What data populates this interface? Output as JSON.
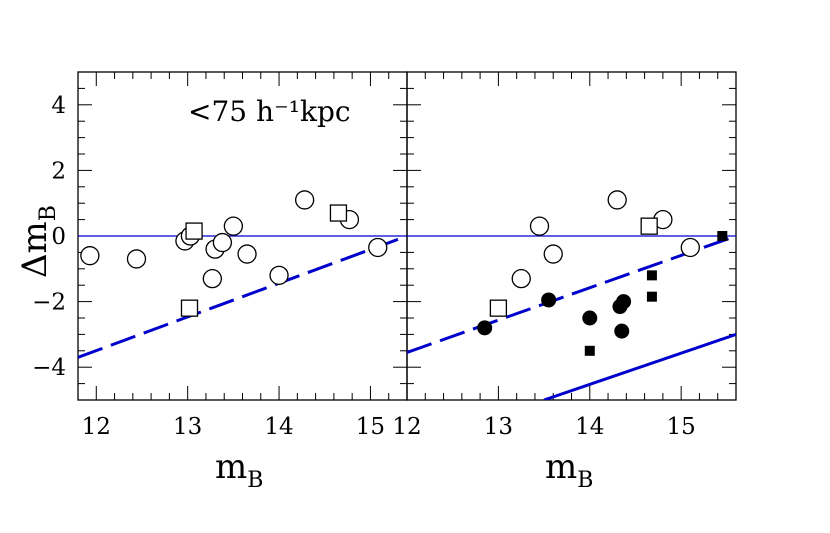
{
  "colors": {
    "blue": "#0000cc",
    "black": "#000000"
  },
  "chart_data": [
    {
      "type": "scatter",
      "panel": "left",
      "xlabel": "m",
      "xlabel_sub": "B",
      "ylabel": "Δm",
      "ylabel_sub": "B",
      "xlim": [
        11.8,
        15.4
      ],
      "ylim": [
        -5,
        5
      ],
      "xticks": [
        12,
        13,
        14,
        15
      ],
      "yticks": [
        4,
        2,
        0,
        -2,
        -4
      ],
      "annotation": "<75 h⁻¹kpc",
      "reference_lines": [
        {
          "style": "solid",
          "color": "#0000cc",
          "points": [
            [
              11.8,
              0
            ],
            [
              15.4,
              0
            ]
          ]
        },
        {
          "style": "dashed",
          "color": "#0000cc",
          "points": [
            [
              11.8,
              -3.7
            ],
            [
              15.4,
              0
            ]
          ]
        }
      ],
      "series": [
        {
          "marker": "open-circle",
          "points": [
            [
              11.93,
              -0.6
            ],
            [
              12.44,
              -0.7
            ],
            [
              12.97,
              -0.15
            ],
            [
              13.03,
              0.0
            ],
            [
              13.27,
              -1.3
            ],
            [
              13.3,
              -0.4
            ],
            [
              13.38,
              -0.2
            ],
            [
              13.5,
              0.3
            ],
            [
              13.65,
              -0.55
            ],
            [
              14.0,
              -1.2
            ],
            [
              14.28,
              1.1
            ],
            [
              14.77,
              0.5
            ],
            [
              15.08,
              -0.35
            ]
          ]
        },
        {
          "marker": "open-square",
          "points": [
            [
              13.07,
              0.15
            ],
            [
              13.02,
              -2.2
            ],
            [
              14.65,
              0.7
            ]
          ]
        }
      ]
    },
    {
      "type": "scatter",
      "panel": "right",
      "xlabel": "m",
      "xlabel_sub": "B",
      "xlim": [
        12.0,
        15.6
      ],
      "ylim": [
        -5,
        5
      ],
      "xticks": [
        12,
        13,
        14,
        15
      ],
      "reference_lines": [
        {
          "style": "solid",
          "color": "#0000cc",
          "points": [
            [
              12.0,
              0
            ],
            [
              15.6,
              0
            ]
          ]
        },
        {
          "style": "dashed",
          "color": "#0000cc",
          "points": [
            [
              12.0,
              -3.55
            ],
            [
              15.6,
              0
            ]
          ]
        },
        {
          "style": "solid",
          "color": "#0000cc",
          "points": [
            [
              13.5,
              -5.0
            ],
            [
              15.6,
              -3.0
            ]
          ]
        }
      ],
      "series": [
        {
          "marker": "open-circle",
          "points": [
            [
              13.25,
              -1.3
            ],
            [
              13.45,
              0.3
            ],
            [
              13.6,
              -0.55
            ],
            [
              14.3,
              1.1
            ],
            [
              14.8,
              0.5
            ],
            [
              15.1,
              -0.35
            ]
          ]
        },
        {
          "marker": "open-square",
          "points": [
            [
              13.0,
              -2.2
            ],
            [
              14.65,
              0.3
            ]
          ]
        },
        {
          "marker": "filled-circle",
          "points": [
            [
              12.85,
              -2.8
            ],
            [
              13.55,
              -1.95
            ],
            [
              14.0,
              -2.5
            ],
            [
              14.33,
              -2.15
            ],
            [
              14.37,
              -2.0
            ],
            [
              14.35,
              -2.9
            ]
          ]
        },
        {
          "marker": "filled-square",
          "points": [
            [
              14.0,
              -3.5
            ],
            [
              14.68,
              -1.2
            ],
            [
              14.68,
              -1.85
            ],
            [
              15.45,
              0.0
            ]
          ]
        }
      ]
    }
  ]
}
